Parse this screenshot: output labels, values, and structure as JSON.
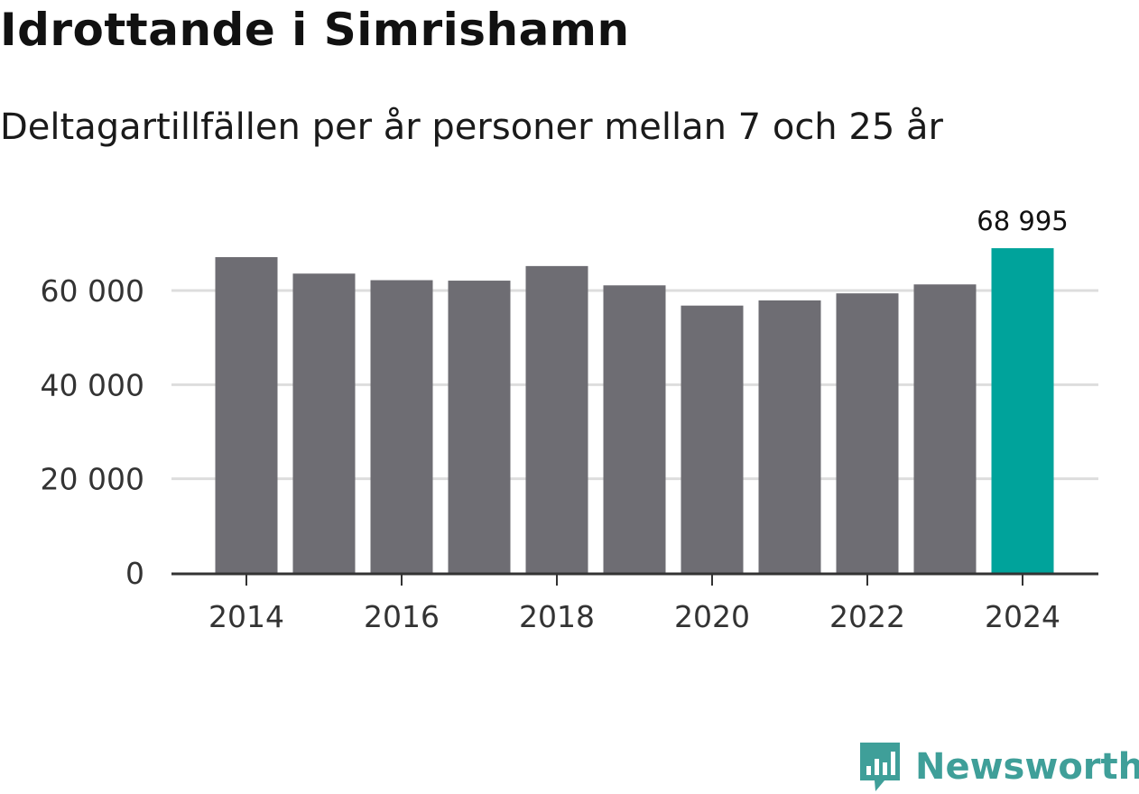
{
  "chart_data": {
    "type": "bar",
    "title": "Idrottande i Simrishamn",
    "subtitle": "Deltagartillfällen per år personer mellan 7 och 25 år",
    "categories": [
      "2014",
      "2015",
      "2016",
      "2017",
      "2018",
      "2019",
      "2020",
      "2021",
      "2022",
      "2023",
      "2024"
    ],
    "values": [
      67100,
      63600,
      62200,
      62100,
      65200,
      61100,
      56800,
      57900,
      59400,
      61300,
      68995
    ],
    "x_tick_labels": [
      "2014",
      "2016",
      "2018",
      "2020",
      "2022",
      "2024"
    ],
    "y_ticks": [
      0,
      20000,
      40000,
      60000
    ],
    "y_tick_labels": [
      "0",
      "20 000",
      "40 000",
      "60 000"
    ],
    "ylim": [
      0,
      75000
    ],
    "highlight_index": 10,
    "highlight_label": "68 995",
    "xlabel": "",
    "ylabel": "",
    "grid": true,
    "colors": {
      "bar": "#6e6d73",
      "highlight": "#00a39b",
      "grid": "#dddddd",
      "axis": "#333333"
    }
  },
  "branding": {
    "logo_text": "Newsworthy",
    "logo_color": "#3f9f99"
  }
}
